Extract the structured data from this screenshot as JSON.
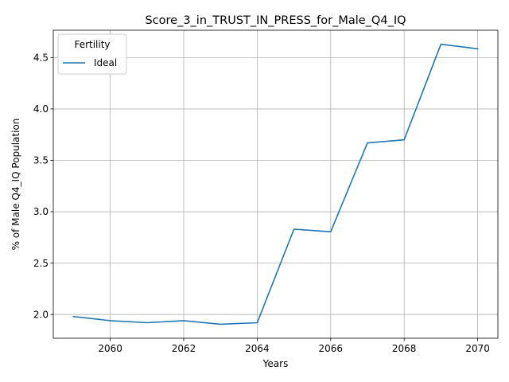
{
  "chart_data": {
    "type": "line",
    "title": "Score_3_in_TRUST_IN_PRESS_for_Male_Q4_IQ",
    "xlabel": "Years",
    "ylabel": "% of Male Q4_IQ Population",
    "x": [
      2059,
      2060,
      2061,
      2062,
      2063,
      2064,
      2065,
      2066,
      2067,
      2068,
      2069,
      2070
    ],
    "series": [
      {
        "name": "Ideal",
        "color": "#1f77b4",
        "values": [
          1.98,
          1.94,
          1.92,
          1.94,
          1.905,
          1.92,
          2.83,
          2.805,
          3.67,
          3.7,
          4.63,
          4.585
        ]
      }
    ],
    "xlim": [
      2058.45,
      2070.55
    ],
    "ylim": [
      1.769,
      4.766
    ],
    "xticks": [
      2060,
      2062,
      2064,
      2066,
      2068,
      2070
    ],
    "xtick_labels": [
      "2060",
      "2062",
      "2064",
      "2066",
      "2068",
      "2070"
    ],
    "yticks": [
      2.0,
      2.5,
      3.0,
      3.5,
      4.0,
      4.5
    ],
    "ytick_labels": [
      "2.0",
      "2.5",
      "3.0",
      "3.5",
      "4.0",
      "4.5"
    ],
    "grid": true,
    "legend": {
      "title": "Fertility",
      "placement": "top-left"
    }
  }
}
